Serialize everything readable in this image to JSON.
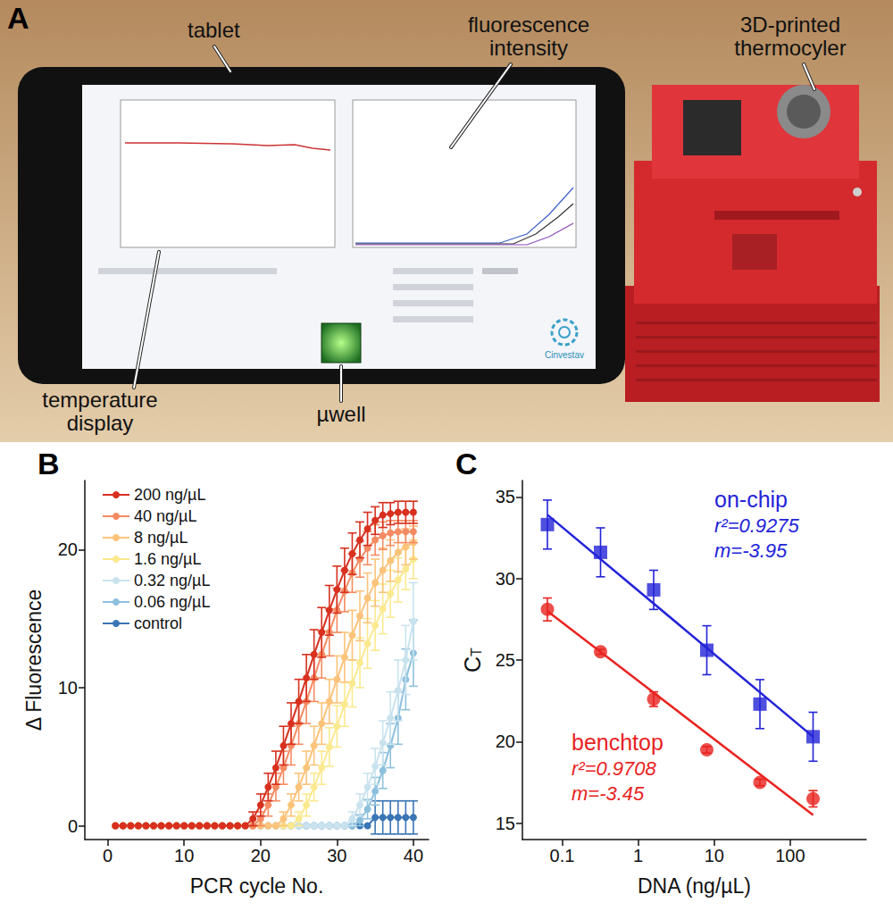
{
  "photo": {
    "letter": "A",
    "labels": {
      "tablet": "tablet",
      "fluorescence": "fluorescence intensity",
      "thermocycler": "3D-printed thermocyler",
      "temperature": "temperature display",
      "well": "µwell"
    },
    "logo_text": "Cinvestav"
  },
  "chart_data": [
    {
      "letter": "B",
      "type": "line",
      "x_label": "PCR cycle No.",
      "y_label": "Δ Fluorescence",
      "marker": "circle",
      "legend": "upper left",
      "xlim": [
        -3,
        42
      ],
      "xticks": [
        0,
        10,
        20,
        30,
        40
      ],
      "ylim": [
        -1,
        25
      ],
      "yticks": [
        0,
        10,
        20
      ],
      "x": [
        1,
        2,
        3,
        4,
        5,
        6,
        7,
        8,
        9,
        10,
        11,
        12,
        13,
        14,
        15,
        16,
        17,
        18,
        19,
        20,
        21,
        22,
        23,
        24,
        25,
        26,
        27,
        28,
        29,
        30,
        31,
        32,
        33,
        34,
        35,
        36,
        37,
        38,
        39,
        40
      ],
      "series": [
        {
          "name": "200 ng/µL",
          "color": "#d7301f",
          "values": [
            0,
            0,
            0,
            0,
            0,
            0,
            0,
            0,
            0,
            0,
            0,
            0,
            0,
            0,
            0,
            0,
            0,
            0,
            0.5,
            1.5,
            2.8,
            4.2,
            5.8,
            7.4,
            9.0,
            10.7,
            12.4,
            14.0,
            15.6,
            17.1,
            18.5,
            19.7,
            20.7,
            21.5,
            22.1,
            22.5,
            22.6,
            22.7,
            22.7,
            22.7
          ],
          "errors": [
            0,
            0,
            0,
            0,
            0,
            0,
            0,
            0,
            0,
            0,
            0,
            0,
            0,
            0,
            0,
            0,
            0,
            0,
            0.5,
            0.8,
            1.0,
            1.2,
            1.4,
            1.5,
            1.6,
            1.7,
            1.8,
            1.8,
            1.8,
            1.7,
            1.6,
            1.5,
            1.3,
            1.2,
            1.0,
            0.9,
            0.8,
            0.8,
            0.8,
            0.8
          ]
        },
        {
          "name": "40 ng/µL",
          "color": "#f58b62",
          "values": [
            0,
            0,
            0,
            0,
            0,
            0,
            0,
            0,
            0,
            0,
            0,
            0,
            0,
            0,
            0,
            0,
            0,
            0,
            0,
            0.5,
            1.5,
            2.8,
            4.2,
            5.8,
            7.4,
            9.0,
            10.7,
            12.4,
            14.0,
            15.6,
            17.0,
            18.3,
            19.3,
            20.1,
            20.7,
            21.0,
            21.2,
            21.3,
            21.3,
            21.3
          ],
          "errors": [
            0,
            0,
            0,
            0,
            0,
            0,
            0,
            0,
            0,
            0,
            0,
            0,
            0,
            0,
            0,
            0,
            0,
            0,
            0,
            0.5,
            0.8,
            1.0,
            1.2,
            1.4,
            1.5,
            1.6,
            1.7,
            1.7,
            1.7,
            1.6,
            1.5,
            1.4,
            1.3,
            1.2,
            1.1,
            1.0,
            0.9,
            0.8,
            0.8,
            0.8
          ]
        },
        {
          "name": "8 ng/µL",
          "color": "#fcc37a",
          "values": [
            0,
            0,
            0,
            0,
            0,
            0,
            0,
            0,
            0,
            0,
            0,
            0,
            0,
            0,
            0,
            0,
            0,
            0,
            0,
            0,
            0,
            0,
            0.5,
            1.5,
            2.8,
            4.2,
            5.8,
            7.4,
            9.0,
            10.6,
            12.2,
            13.8,
            15.2,
            16.5,
            17.6,
            18.5,
            19.2,
            19.8,
            20.2,
            20.5
          ],
          "errors": [
            0,
            0,
            0,
            0,
            0,
            0,
            0,
            0,
            0,
            0,
            0,
            0,
            0,
            0,
            0,
            0,
            0,
            0,
            0,
            0,
            0,
            0,
            0.5,
            0.8,
            1.0,
            1.2,
            1.4,
            1.5,
            1.6,
            1.7,
            1.8,
            1.8,
            1.8,
            1.8,
            1.7,
            1.6,
            1.5,
            1.4,
            1.3,
            1.2
          ]
        },
        {
          "name": "1.6 ng/µL",
          "color": "#fbe98f",
          "values": [
            0,
            0,
            0,
            0,
            0,
            0,
            0,
            0,
            0,
            0,
            0,
            0,
            0,
            0,
            0,
            0,
            0,
            0,
            0,
            0,
            0,
            0,
            0,
            0,
            0.5,
            1.5,
            2.8,
            4.2,
            5.7,
            7.2,
            8.8,
            10.3,
            11.8,
            13.2,
            14.5,
            15.7,
            16.8,
            17.8,
            18.6,
            19.3
          ],
          "errors": [
            0,
            0,
            0,
            0,
            0,
            0,
            0,
            0,
            0,
            0,
            0,
            0,
            0,
            0,
            0,
            0,
            0,
            0,
            0,
            0,
            0,
            0,
            0,
            0,
            0.5,
            0.8,
            1.0,
            1.2,
            1.4,
            1.5,
            1.6,
            1.7,
            1.8,
            1.8,
            1.8,
            1.8,
            1.7,
            1.6,
            1.5,
            1.4
          ]
        },
        {
          "name": "0.32 ng/µL",
          "color": "#c9e3ee",
          "values": [
            0,
            0,
            0,
            0,
            0,
            0,
            0,
            0,
            0,
            0,
            0,
            0,
            0,
            0,
            0,
            0,
            0,
            0,
            0,
            0,
            0,
            0,
            0,
            0,
            0,
            0,
            0,
            0,
            0,
            0,
            0,
            0.5,
            1.5,
            2.8,
            4.3,
            6.0,
            7.8,
            9.8,
            12.0,
            14.8
          ],
          "errors": [
            0,
            0,
            0,
            0,
            0,
            0,
            0,
            0,
            0,
            0,
            0,
            0,
            0,
            0,
            0,
            0,
            0,
            0,
            0,
            0,
            0,
            0,
            0,
            0,
            0,
            0,
            0,
            0,
            0,
            0,
            0,
            0.5,
            0.8,
            1.0,
            1.3,
            1.6,
            1.9,
            2.2,
            2.5,
            2.8
          ]
        },
        {
          "name": "0.06 ng/µL",
          "color": "#8dc0dd",
          "values": [
            0,
            0,
            0,
            0,
            0,
            0,
            0,
            0,
            0,
            0,
            0,
            0,
            0,
            0,
            0,
            0,
            0,
            0,
            0,
            0,
            0,
            0,
            0,
            0,
            0,
            0,
            0,
            0,
            0,
            0,
            0,
            0,
            0.4,
            1.2,
            2.5,
            4.0,
            5.8,
            7.8,
            10.6,
            12.5
          ],
          "errors": [
            0,
            0,
            0,
            0,
            0,
            0,
            0,
            0,
            0,
            0,
            0,
            0,
            0,
            0,
            0,
            0,
            0,
            0,
            0,
            0,
            0,
            0,
            0,
            0,
            0,
            0,
            0,
            0,
            0,
            0,
            0,
            0,
            0.4,
            0.7,
            1.0,
            1.3,
            1.6,
            1.9,
            2.2,
            2.4
          ]
        },
        {
          "name": "control",
          "color": "#3a75b5",
          "values": [
            0,
            0,
            0,
            0,
            0,
            0,
            0,
            0,
            0,
            0,
            0,
            0,
            0,
            0,
            0,
            0,
            0,
            0,
            0,
            0,
            0,
            0,
            0,
            0,
            0,
            0,
            0,
            0,
            0,
            0,
            0,
            0,
            0,
            0,
            0.6,
            0.6,
            0.6,
            0.6,
            0.6,
            0.6
          ],
          "errors": [
            0,
            0,
            0,
            0,
            0,
            0,
            0,
            0,
            0,
            0,
            0,
            0,
            0,
            0,
            0,
            0,
            0,
            0,
            0,
            0,
            0,
            0,
            0,
            0,
            0,
            0,
            0,
            0,
            0,
            0,
            0,
            0,
            0,
            0,
            1.2,
            1.2,
            1.2,
            1.2,
            1.2,
            1.2
          ]
        }
      ]
    },
    {
      "letter": "C",
      "type": "scatter",
      "x_label": "DNA (ng/µL)",
      "y_label": "C",
      "y_label_subscript": "T",
      "log": "x",
      "xlim": [
        0.03,
        1000
      ],
      "xticks": [
        0.1,
        1,
        10,
        100
      ],
      "ylim": [
        14,
        36
      ],
      "yticks": [
        15,
        20,
        25,
        30,
        35
      ],
      "series": [
        {
          "name": "on-chip",
          "color": "#2323d8",
          "marker": "square",
          "x": [
            0.064,
            0.32,
            1.6,
            8,
            40,
            200
          ],
          "values": [
            33.3,
            31.6,
            29.3,
            25.6,
            22.3,
            20.3
          ],
          "errors": [
            1.5,
            1.5,
            1.2,
            1.5,
            1.5,
            1.5
          ],
          "fit": {
            "x": [
              0.064,
              200
            ],
            "values": [
              33.9,
              20.3
            ]
          },
          "annotations": [
            "r²=0.9275",
            "m=-3.95"
          ]
        },
        {
          "name": "benchtop",
          "color": "#e8231f",
          "marker": "circle",
          "x": [
            0.064,
            0.32,
            1.6,
            8,
            40,
            200
          ],
          "values": [
            28.1,
            25.5,
            22.6,
            19.5,
            17.5,
            16.5
          ],
          "errors": [
            0.7,
            0.15,
            0.45,
            0.2,
            0.2,
            0.5
          ],
          "fit": {
            "x": [
              0.064,
              200
            ],
            "values": [
              28.0,
              15.5
            ]
          },
          "annotations": [
            "r²=0.9708",
            "m=-3.45"
          ]
        }
      ]
    }
  ]
}
